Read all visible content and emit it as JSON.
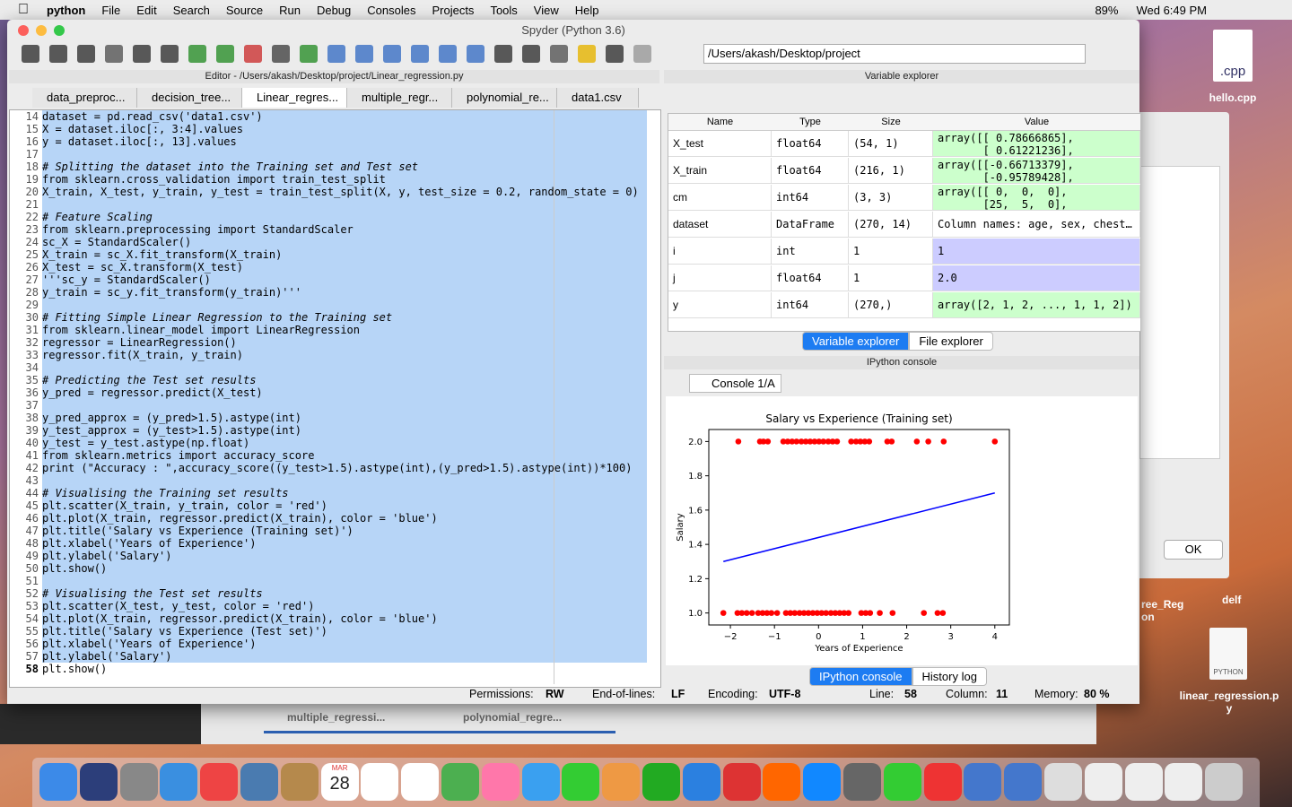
{
  "menubar": {
    "app": "python",
    "items": [
      "File",
      "Edit",
      "Search",
      "Source",
      "Run",
      "Debug",
      "Consoles",
      "Projects",
      "Tools",
      "View",
      "Help"
    ],
    "battery": "89%",
    "clock": "Wed 6:49 PM"
  },
  "window": {
    "title": "Spyder (Python 3.6)",
    "path": "/Users/akash/Desktop/project"
  },
  "editor": {
    "title": "Editor - /Users/akash/Desktop/project/Linear_regression.py",
    "tabs": [
      "data_preproc...",
      "decision_tree...",
      "Linear_regres...",
      "multiple_regr...",
      "polynomial_re...",
      "data1.csv"
    ],
    "lines": [
      {
        "n": 14,
        "text": "dataset = pd.read_csv('data1.csv')"
      },
      {
        "n": 15,
        "text": "X = dataset.iloc[:, 3:4].values"
      },
      {
        "n": 16,
        "text": "y = dataset.iloc[:, 13].values"
      },
      {
        "n": 17,
        "text": ""
      },
      {
        "n": 18,
        "text": "# Splitting the dataset into the Training set and Test set"
      },
      {
        "n": 19,
        "text": "from sklearn.cross_validation import train_test_split"
      },
      {
        "n": 20,
        "text": "X_train, X_test, y_train, y_test = train_test_split(X, y, test_size = 0.2, random_state = 0)"
      },
      {
        "n": 21,
        "text": ""
      },
      {
        "n": 22,
        "text": "# Feature Scaling"
      },
      {
        "n": 23,
        "text": "from sklearn.preprocessing import StandardScaler"
      },
      {
        "n": 24,
        "text": "sc_X = StandardScaler()"
      },
      {
        "n": 25,
        "text": "X_train = sc_X.fit_transform(X_train)"
      },
      {
        "n": 26,
        "text": "X_test = sc_X.transform(X_test)"
      },
      {
        "n": 27,
        "text": "'''sc_y = StandardScaler()"
      },
      {
        "n": 28,
        "text": "y_train = sc_y.fit_transform(y_train)'''"
      },
      {
        "n": 29,
        "text": ""
      },
      {
        "n": 30,
        "text": "# Fitting Simple Linear Regression to the Training set"
      },
      {
        "n": 31,
        "text": "from sklearn.linear_model import LinearRegression"
      },
      {
        "n": 32,
        "text": "regressor = LinearRegression()"
      },
      {
        "n": 33,
        "text": "regressor.fit(X_train, y_train)"
      },
      {
        "n": 34,
        "text": ""
      },
      {
        "n": 35,
        "text": "# Predicting the Test set results"
      },
      {
        "n": 36,
        "text": "y_pred = regressor.predict(X_test)"
      },
      {
        "n": 37,
        "text": ""
      },
      {
        "n": 38,
        "text": "y_pred_approx = (y_pred>1.5).astype(int)"
      },
      {
        "n": 39,
        "text": "y_test_approx = (y_test>1.5).astype(int)"
      },
      {
        "n": 40,
        "text": "y_test = y_test.astype(np.float)"
      },
      {
        "n": 41,
        "text": "from sklearn.metrics import accuracy_score"
      },
      {
        "n": 42,
        "text": "print (\"Accuracy : \",accuracy_score((y_test>1.5).astype(int),(y_pred>1.5).astype(int))*100)"
      },
      {
        "n": 43,
        "text": ""
      },
      {
        "n": 44,
        "text": "# Visualising the Training set results"
      },
      {
        "n": 45,
        "text": "plt.scatter(X_train, y_train, color = 'red')"
      },
      {
        "n": 46,
        "text": "plt.plot(X_train, regressor.predict(X_train), color = 'blue')"
      },
      {
        "n": 47,
        "text": "plt.title('Salary vs Experience (Training set)')"
      },
      {
        "n": 48,
        "text": "plt.xlabel('Years of Experience')"
      },
      {
        "n": 49,
        "text": "plt.ylabel('Salary')"
      },
      {
        "n": 50,
        "text": "plt.show()"
      },
      {
        "n": 51,
        "text": ""
      },
      {
        "n": 52,
        "text": "# Visualising the Test set results"
      },
      {
        "n": 53,
        "text": "plt.scatter(X_test, y_test, color = 'red')"
      },
      {
        "n": 54,
        "text": "plt.plot(X_train, regressor.predict(X_train), color = 'blue')"
      },
      {
        "n": 55,
        "text": "plt.title('Salary vs Experience (Test set)')"
      },
      {
        "n": 56,
        "text": "plt.xlabel('Years of Experience')"
      },
      {
        "n": 57,
        "text": "plt.ylabel('Salary')"
      },
      {
        "n": 58,
        "text": "plt.show()"
      }
    ]
  },
  "variable_explorer": {
    "title": "Variable explorer",
    "columns": [
      "Name",
      "Type",
      "Size",
      "Value"
    ],
    "rows": [
      {
        "name": "X_test",
        "type": "float64",
        "size": "(54, 1)",
        "value": "array([[ 0.78666865],\n       [ 0.61221236],",
        "color": "#ccffcc"
      },
      {
        "name": "X_train",
        "type": "float64",
        "size": "(216, 1)",
        "value": "array([[-0.66713379],\n       [-0.95789428],",
        "color": "#ccffcc"
      },
      {
        "name": "cm",
        "type": "int64",
        "size": "(3, 3)",
        "value": "array([[ 0,  0,  0],\n       [25,  5,  0],",
        "color": "#ccffcc"
      },
      {
        "name": "dataset",
        "type": "DataFrame",
        "size": "(270, 14)",
        "value": "Column names: age, sex, chest…",
        "color": "#ffffff"
      },
      {
        "name": "i",
        "type": "int",
        "size": "1",
        "value": "1",
        "color": "#ccccff"
      },
      {
        "name": "j",
        "type": "float64",
        "size": "1",
        "value": "2.0",
        "color": "#ccccff"
      },
      {
        "name": "y",
        "type": "int64",
        "size": "(270,)",
        "value": "array([2, 1, 2, ..., 1, 1, 2])",
        "color": "#ccffcc"
      }
    ],
    "tabs": [
      "Variable explorer",
      "File explorer"
    ]
  },
  "console": {
    "title": "IPython console",
    "tab": "Console 1/A",
    "tabs": [
      "IPython console",
      "History log"
    ]
  },
  "chart_data": {
    "type": "scatter",
    "title": "Salary vs Experience (Training set)",
    "x_label": "Years of Experience",
    "y_label": "Salary",
    "xlim": [
      -2.49,
      4.33
    ],
    "ylim": [
      0.93,
      2.07
    ],
    "xticks": [
      {
        "value": -2,
        "label": "−2"
      },
      {
        "value": -1,
        "label": "−1"
      },
      0,
      1,
      2,
      3,
      4
    ],
    "yticks": [
      {
        "value": 1,
        "label": "1.0"
      },
      {
        "value": 1.2,
        "label": "1.2"
      },
      {
        "value": 1.4,
        "label": "1.4"
      },
      {
        "value": 1.6,
        "label": "1.6"
      },
      {
        "value": 1.8,
        "label": "1.8"
      },
      {
        "value": 2,
        "label": "2.0"
      }
    ],
    "series": [
      {
        "type": "scatter",
        "color": "#ff0000",
        "x": [
          -1.82,
          -1.33,
          -1.25,
          -1.15,
          -0.8,
          -0.7,
          -0.6,
          -0.5,
          -0.39,
          -0.29,
          -0.19,
          -0.09,
          0.01,
          0.11,
          0.22,
          0.32,
          0.42,
          0.74,
          0.85,
          0.95,
          1.05,
          1.15,
          1.56,
          1.66,
          2.23,
          2.49,
          2.84,
          4.0,
          -2.16,
          -1.84,
          -1.74,
          -1.63,
          -1.51,
          -1.37,
          -1.27,
          -1.17,
          -1.07,
          -0.94,
          -0.74,
          -0.64,
          -0.54,
          -0.43,
          -0.33,
          -0.23,
          -0.13,
          -0.03,
          0.07,
          0.17,
          0.28,
          0.38,
          0.48,
          0.58,
          0.68,
          0.97,
          1.07,
          1.17,
          1.39,
          1.68,
          2.39,
          2.7,
          2.82
        ],
        "values": [
          2,
          2,
          2,
          2,
          2,
          2,
          2,
          2,
          2,
          2,
          2,
          2,
          2,
          2,
          2,
          2,
          2,
          2,
          2,
          2,
          2,
          2,
          2,
          2,
          2,
          2,
          2,
          2,
          1,
          1,
          1,
          1,
          1,
          1,
          1,
          1,
          1,
          1,
          1,
          1,
          1,
          1,
          1,
          1,
          1,
          1,
          1,
          1,
          1,
          1,
          1,
          1,
          1,
          1,
          1,
          1,
          1,
          1,
          1,
          1,
          1
        ]
      },
      {
        "type": "line",
        "color": "#0000ff",
        "x": [
          -2.16,
          4.0
        ],
        "values": [
          1.3,
          1.7
        ]
      }
    ]
  },
  "statusbar": {
    "permissions_label": "Permissions:",
    "permissions": "RW",
    "eol_label": "End-of-lines:",
    "eol": "LF",
    "encoding_label": "Encoding:",
    "encoding": "UTF-8",
    "line_label": "Line:",
    "line": "58",
    "column_label": "Column:",
    "column": "11",
    "memory_label": "Memory:",
    "memory": "80 %"
  },
  "desktop": {
    "cpp_icon": ".cpp",
    "cpp_file": "hello.cpp",
    "ok_button": "OK",
    "partial_file": "ree_Reg\non",
    "folder": "delf",
    "py_icon": "PYTHON",
    "py_file": "linear_regression.p\ny",
    "background_tabs": [
      "multiple_regressi...",
      "polynomial_regre..."
    ]
  },
  "dock": {
    "calendar_month": "MAR",
    "calendar_day": "28"
  }
}
